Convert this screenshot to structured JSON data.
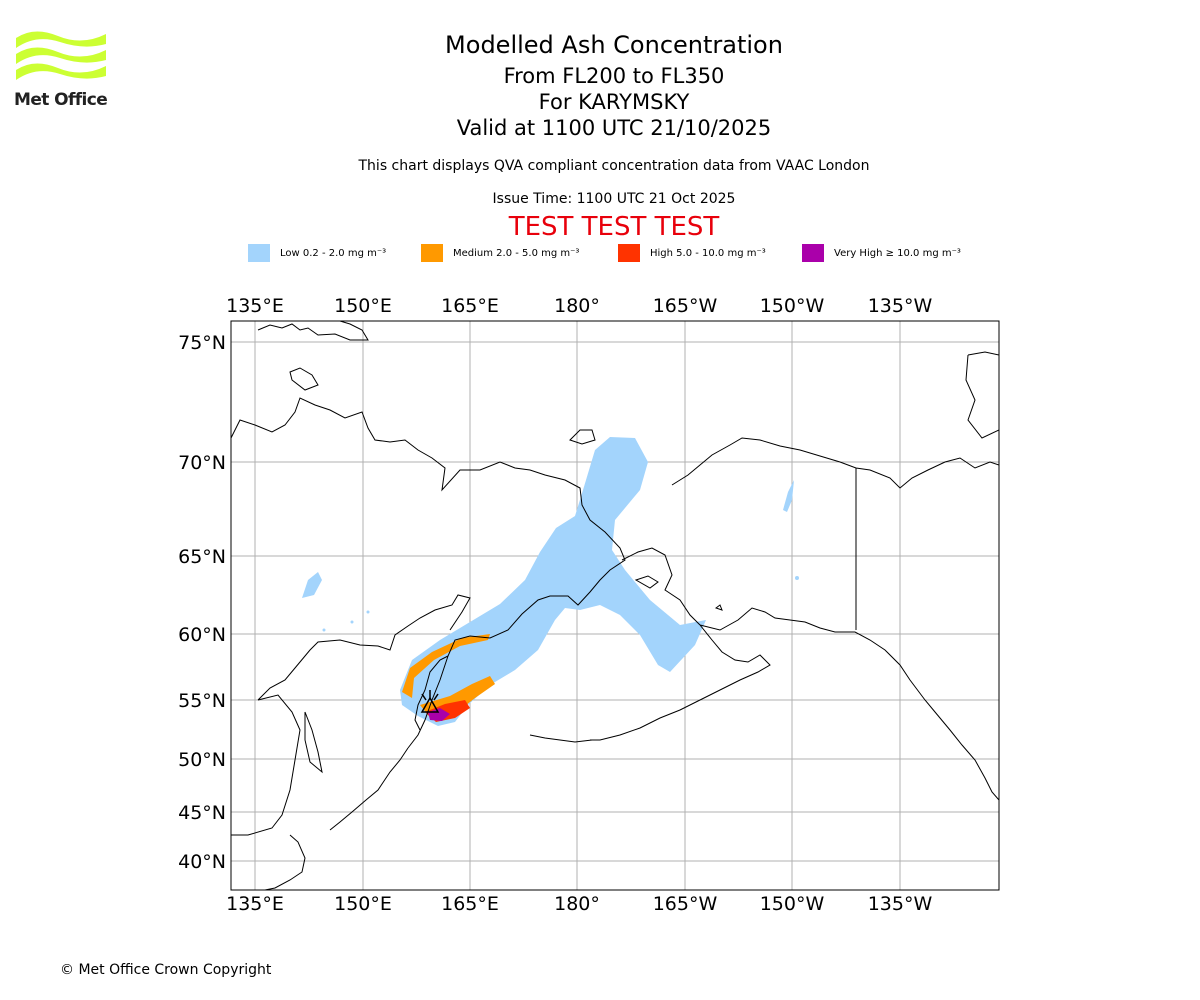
{
  "logo": {
    "text": "Met Office",
    "color": "#ccff33"
  },
  "titles": {
    "main": "Modelled Ash Concentration",
    "levels": "From FL200 to FL350",
    "volcano": "For KARYMSKY",
    "valid": "Valid at 1100 UTC 21/10/2025"
  },
  "subtitle": "This chart displays QVA compliant concentration data from VAAC London",
  "issue_time": "Issue Time: 1100 UTC 21 Oct 2025",
  "test_banner": "TEST TEST TEST",
  "legend": [
    {
      "label": "Low 0.2 - 2.0 mg m⁻³",
      "color": "#a3d4fc"
    },
    {
      "label": "Medium 2.0 - 5.0 mg m⁻³",
      "color": "#ff9900"
    },
    {
      "label": "High 5.0 - 10.0 mg m⁻³",
      "color": "#ff3300"
    },
    {
      "label": "Very High ≥ 10.0 mg m⁻³",
      "color": "#aa00aa"
    }
  ],
  "map": {
    "lon_labels": [
      "135°E",
      "150°E",
      "165°E",
      "180°",
      "165°W",
      "150°W",
      "135°W"
    ],
    "lat_labels": [
      "75°N",
      "70°N",
      "65°N",
      "60°N",
      "55°N",
      "50°N",
      "45°N",
      "40°N"
    ]
  },
  "copyright": "© Met Office Crown Copyright"
}
